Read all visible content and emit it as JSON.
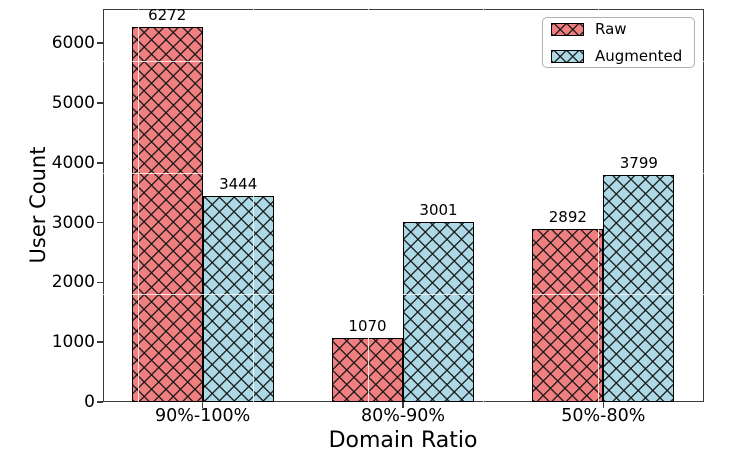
{
  "chart_data": {
    "type": "bar",
    "title": "",
    "categories": [
      "90%-100%",
      "80%-90%",
      "50%-80%"
    ],
    "series": [
      {
        "name": "Raw",
        "color": "#F08080",
        "values": [
          6272,
          1070,
          2892
        ]
      },
      {
        "name": "Augmented",
        "color": "#ADD8E6",
        "values": [
          3444,
          3001,
          3799
        ]
      }
    ],
    "xlabel": "Domain Ratio",
    "ylabel": "User Count",
    "ylim": [
      0,
      6570
    ],
    "yticks": [
      0,
      1000,
      2000,
      3000,
      4000,
      5000,
      6000
    ],
    "bar_value_labels": true,
    "hatch": "xx",
    "edge_color": "#000000",
    "grid": "white lines drawn over bars",
    "legend_position": "upper right"
  }
}
